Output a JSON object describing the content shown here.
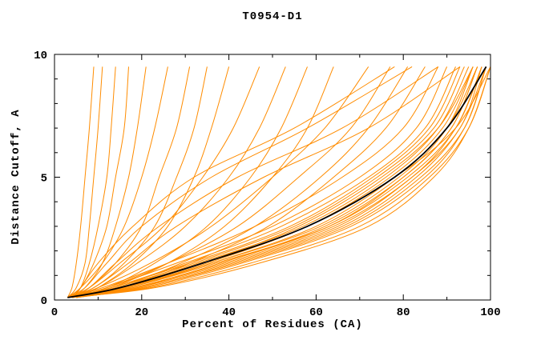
{
  "chart_data": {
    "type": "line",
    "title": "T0954-D1",
    "xlabel": "Percent of Residues (CA)",
    "ylabel": "Distance Cutoff, A",
    "xlim": [
      0,
      100
    ],
    "ylim": [
      0,
      10
    ],
    "xticks": [
      0,
      20,
      40,
      60,
      80,
      100
    ],
    "yticks": [
      0,
      5,
      10
    ],
    "xminor_step": 10,
    "yminor_step": 1,
    "grid": false,
    "legend_position": "none",
    "background": "#ffffff",
    "y_samples": [
      0.1,
      0.5,
      1.5,
      3,
      5,
      7,
      9.5
    ],
    "models": {
      "color": "#ff8c00",
      "curves": [
        [
          3,
          4,
          5,
          6,
          7,
          8,
          9
        ],
        [
          3,
          5,
          7,
          8,
          9,
          10,
          11
        ],
        [
          4,
          6,
          8,
          10,
          12,
          13,
          14
        ],
        [
          3,
          6,
          9,
          12,
          14,
          16,
          17
        ],
        [
          4,
          7,
          11,
          14,
          17,
          19,
          21
        ],
        [
          3,
          6,
          11,
          16,
          20,
          23,
          26
        ],
        [
          4,
          8,
          14,
          20,
          24,
          28,
          31
        ],
        [
          3,
          9,
          16,
          23,
          28,
          32,
          35
        ],
        [
          5,
          10,
          18,
          26,
          32,
          36,
          40
        ],
        [
          3,
          8,
          15,
          25,
          34,
          41,
          47
        ],
        [
          4,
          10,
          19,
          30,
          40,
          47,
          53
        ],
        [
          3,
          12,
          23,
          35,
          45,
          52,
          58
        ],
        [
          5,
          13,
          26,
          39,
          50,
          58,
          64
        ],
        [
          3,
          7,
          12,
          20,
          36,
          58,
          82
        ],
        [
          4,
          8,
          14,
          24,
          42,
          66,
          88
        ],
        [
          3,
          9,
          17,
          28,
          48,
          72,
          93
        ],
        [
          4,
          6,
          10,
          18,
          32,
          55,
          78
        ],
        [
          3,
          10,
          22,
          36,
          50,
          62,
          72
        ],
        [
          4,
          12,
          26,
          42,
          56,
          68,
          77
        ],
        [
          3,
          14,
          29,
          46,
          61,
          72,
          81
        ],
        [
          5,
          15,
          31,
          49,
          64,
          76,
          85
        ],
        [
          3,
          11,
          26,
          46,
          66,
          80,
          88
        ],
        [
          4,
          12,
          28,
          50,
          70,
          83,
          90
        ],
        [
          3,
          13,
          30,
          52,
          72,
          85,
          92
        ],
        [
          5,
          14,
          32,
          55,
          74,
          87,
          94
        ],
        [
          4,
          15,
          33,
          57,
          76,
          88,
          95
        ],
        [
          3,
          16,
          35,
          58,
          77,
          89,
          96
        ],
        [
          5,
          17,
          36,
          60,
          78,
          90,
          97
        ],
        [
          4,
          18,
          38,
          62,
          80,
          91,
          97
        ],
        [
          3,
          15,
          34,
          56,
          75,
          88,
          96
        ],
        [
          5,
          13,
          31,
          54,
          73,
          86,
          93
        ],
        [
          4,
          16,
          36,
          61,
          79,
          90,
          96
        ],
        [
          3,
          17,
          37,
          63,
          81,
          92,
          98
        ],
        [
          4,
          19,
          40,
          65,
          82,
          93,
          98
        ],
        [
          5,
          20,
          42,
          67,
          84,
          94,
          99
        ],
        [
          3,
          18,
          39,
          64,
          82,
          92,
          98
        ],
        [
          4,
          21,
          43,
          68,
          85,
          94,
          99
        ],
        [
          3,
          22,
          45,
          70,
          86,
          95,
          100
        ],
        [
          4,
          20,
          41,
          66,
          83,
          93,
          99
        ],
        [
          5,
          19,
          38,
          63,
          80,
          91,
          97
        ],
        [
          3,
          23,
          47,
          72,
          87,
          95,
          100
        ],
        [
          4,
          16,
          34,
          58,
          78,
          92,
          100
        ]
      ]
    },
    "reference": {
      "color": "#000000",
      "x": [
        3,
        15,
        34,
        58,
        78,
        90,
        99
      ]
    }
  }
}
